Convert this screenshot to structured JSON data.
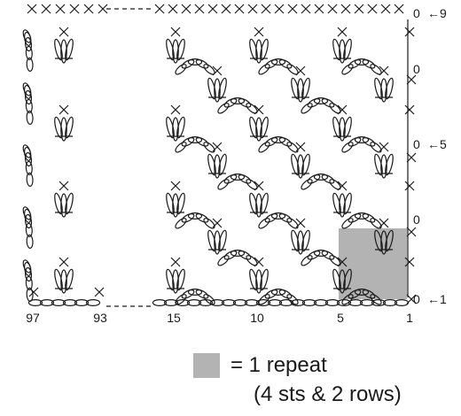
{
  "chart": {
    "stitch_numbers": [
      "97",
      "93",
      "15",
      "10",
      "5",
      "1"
    ],
    "row_markers": [
      {
        "label": "0",
        "arrow": "←1"
      },
      {
        "label": "0",
        "arrow": ""
      },
      {
        "label": "0",
        "arrow": "←5"
      },
      {
        "label": "0",
        "arrow": ""
      },
      {
        "label": "0",
        "arrow": "←9"
      }
    ],
    "repeat_highlight_color": "#b3b3b3"
  },
  "legend": {
    "label": "= 1 repeat",
    "note": "(4 sts & 2 rows)"
  }
}
